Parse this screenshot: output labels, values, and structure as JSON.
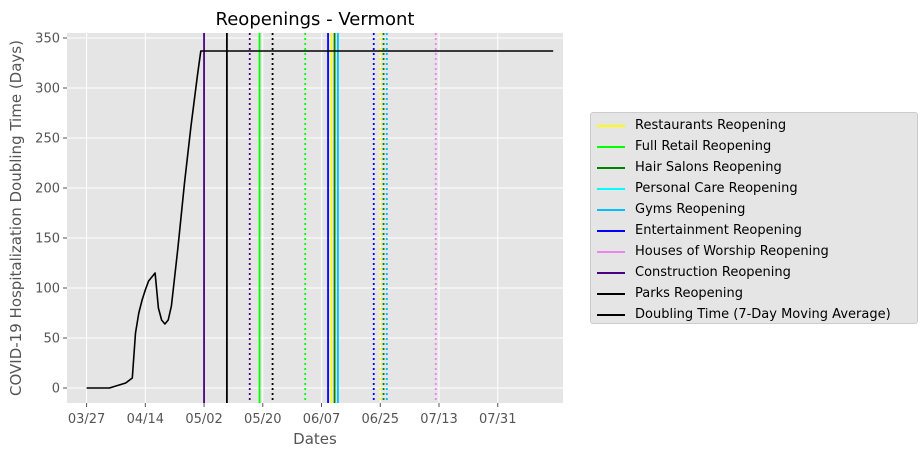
{
  "chart_data": {
    "type": "line",
    "title": "Reopenings - Vermont",
    "xlabel": "Dates",
    "ylabel": "COVID-19 Hospitalization Doubling Time (Days)",
    "x_ticks": [
      "03/27",
      "04/14",
      "05/02",
      "05/20",
      "06/07",
      "06/25",
      "07/13",
      "07/31"
    ],
    "y_ticks": [
      0,
      50,
      100,
      150,
      200,
      250,
      300,
      350
    ],
    "xlim": [
      "2020-03-21",
      "2020-08-20"
    ],
    "ylim": [
      -15,
      355
    ],
    "grid": true,
    "legend_position": "outside-right",
    "series": [
      {
        "name": "Doubling Time (7-Day Moving Average)",
        "color": "#000000",
        "points": [
          [
            "2020-03-27",
            0
          ],
          [
            "2020-04-03",
            0
          ],
          [
            "2020-04-06",
            3
          ],
          [
            "2020-04-08",
            5
          ],
          [
            "2020-04-10",
            10
          ],
          [
            "2020-04-11",
            55
          ],
          [
            "2020-04-12",
            75
          ],
          [
            "2020-04-13",
            88
          ],
          [
            "2020-04-14",
            98
          ],
          [
            "2020-04-15",
            107
          ],
          [
            "2020-04-17",
            115
          ],
          [
            "2020-04-18",
            80
          ],
          [
            "2020-04-19",
            68
          ],
          [
            "2020-04-20",
            64
          ],
          [
            "2020-04-21",
            68
          ],
          [
            "2020-04-22",
            82
          ],
          [
            "2020-04-24",
            140
          ],
          [
            "2020-04-26",
            205
          ],
          [
            "2020-04-28",
            262
          ],
          [
            "2020-04-30",
            313
          ],
          [
            "2020-05-01",
            337
          ],
          [
            "2020-08-17",
            337
          ]
        ]
      }
    ],
    "reopenings": [
      {
        "name": "Restaurants Reopening",
        "color": "#ffff00",
        "dates": [
          {
            "date": "2020-06-10",
            "style": "solid"
          },
          {
            "date": "2020-06-25",
            "style": "dotted"
          }
        ]
      },
      {
        "name": "Full Retail Reopening",
        "color": "#00ff00",
        "dates": [
          {
            "date": "2020-05-19",
            "style": "solid"
          },
          {
            "date": "2020-06-02",
            "style": "dotted"
          }
        ]
      },
      {
        "name": "Hair Salons Reopening",
        "color": "#008000",
        "dates": [
          {
            "date": "2020-06-11",
            "style": "solid"
          },
          {
            "date": "2020-06-26",
            "style": "dotted"
          }
        ]
      },
      {
        "name": "Personal Care Reopening",
        "color": "#00ffff",
        "dates": [
          {
            "date": "2020-06-12",
            "style": "solid"
          },
          {
            "date": "2020-06-27",
            "style": "dotted"
          }
        ]
      },
      {
        "name": "Gyms Reopening",
        "color": "#00bfff",
        "dates": [
          {
            "date": "2020-06-12",
            "style": "solid"
          },
          {
            "date": "2020-06-27",
            "style": "dotted"
          }
        ]
      },
      {
        "name": "Entertainment Reopening",
        "color": "#0000ff",
        "dates": [
          {
            "date": "2020-06-09",
            "style": "solid"
          },
          {
            "date": "2020-06-23",
            "style": "dotted"
          }
        ]
      },
      {
        "name": "Houses of Worship Reopening",
        "color": "#ee82ee",
        "dates": [
          {
            "date": "2020-07-12",
            "style": "dotted"
          }
        ]
      },
      {
        "name": "Construction Reopening",
        "color": "#4b0082",
        "dates": [
          {
            "date": "2020-05-02",
            "style": "solid"
          },
          {
            "date": "2020-05-16",
            "style": "dotted"
          }
        ]
      },
      {
        "name": "Parks Reopening",
        "color": "#000000",
        "dates": [
          {
            "date": "2020-05-09",
            "style": "solid"
          },
          {
            "date": "2020-05-23",
            "style": "dotted"
          }
        ]
      }
    ]
  }
}
